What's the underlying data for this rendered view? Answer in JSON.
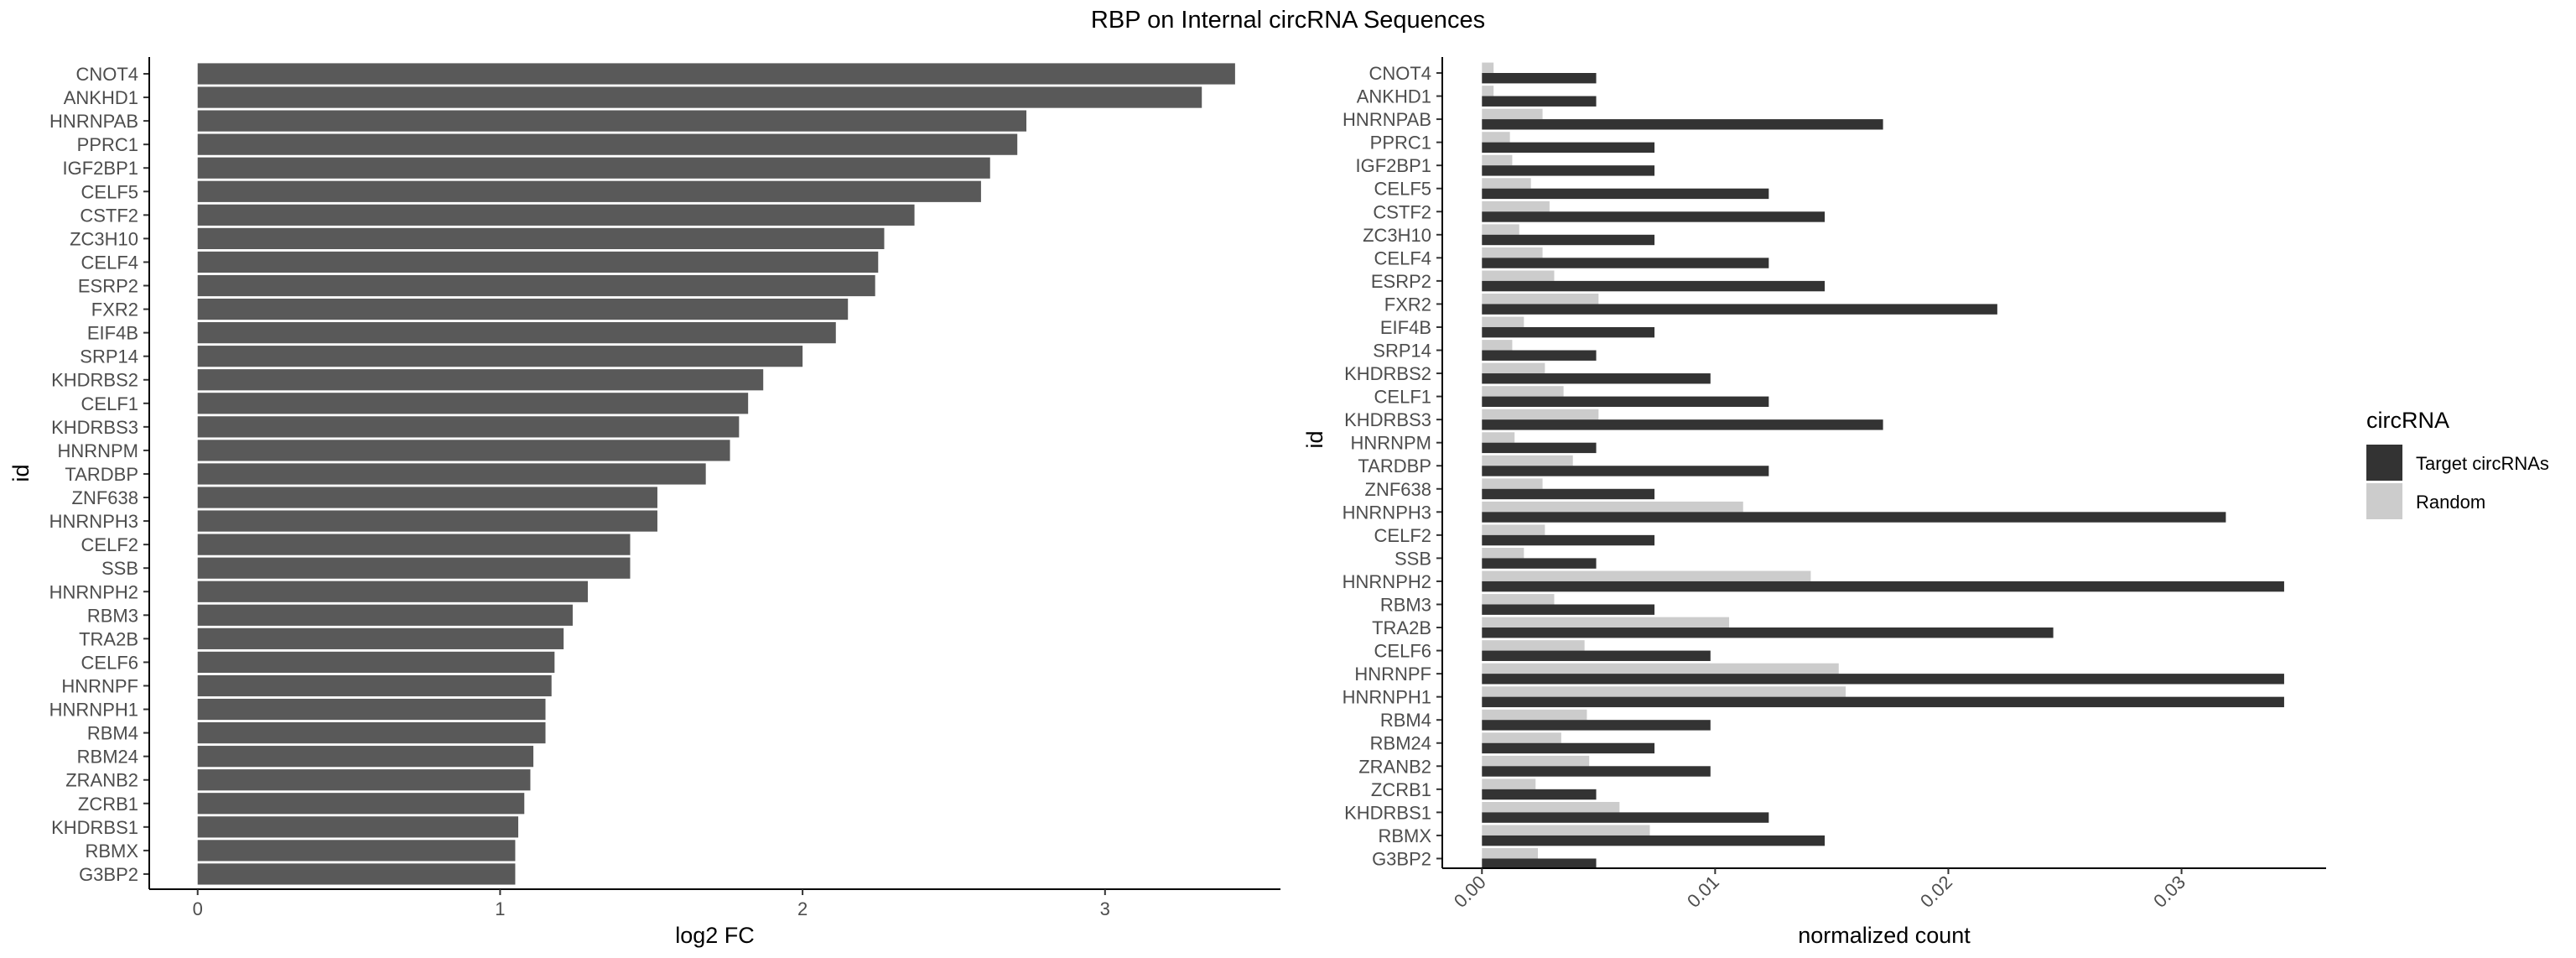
{
  "title": "RBP on Internal circRNA Sequences",
  "colors": {
    "left_bar": "#595959",
    "target": "#333333",
    "random": "#cccccc",
    "axis": "#000000",
    "tick_text": "#4d4d4d"
  },
  "chart_data": [
    {
      "type": "bar",
      "orientation": "horizontal",
      "xlabel": "log2 FC",
      "ylabel": "id",
      "xlim": [
        -0.16,
        3.58
      ],
      "xticks": [
        0,
        1,
        2,
        3
      ],
      "grid": false,
      "categories": [
        "CNOT4",
        "ANKHD1",
        "HNRNPAB",
        "PPRC1",
        "IGF2BP1",
        "CELF5",
        "CSTF2",
        "ZC3H10",
        "CELF4",
        "ESRP2",
        "FXR2",
        "EIF4B",
        "SRP14",
        "KHDRBS2",
        "CELF1",
        "KHDRBS3",
        "HNRNPM",
        "TARDBP",
        "ZNF638",
        "HNRNPH3",
        "CELF2",
        "SSB",
        "HNRNPH2",
        "RBM3",
        "TRA2B",
        "CELF6",
        "HNRNPF",
        "HNRNPH1",
        "RBM4",
        "RBM24",
        "ZRANB2",
        "ZCRB1",
        "KHDRBS1",
        "RBMX",
        "G3BP2"
      ],
      "values": [
        3.43,
        3.32,
        2.74,
        2.71,
        2.62,
        2.59,
        2.37,
        2.27,
        2.25,
        2.24,
        2.15,
        2.11,
        2.0,
        1.87,
        1.82,
        1.79,
        1.76,
        1.68,
        1.52,
        1.52,
        1.43,
        1.43,
        1.29,
        1.24,
        1.21,
        1.18,
        1.17,
        1.15,
        1.15,
        1.11,
        1.1,
        1.08,
        1.06,
        1.05,
        1.05
      ]
    },
    {
      "type": "bar",
      "orientation": "horizontal",
      "xlabel": "normalized count",
      "ylabel": "id",
      "xlim": [
        -0.0017,
        0.0362
      ],
      "xticks": [
        "0.00",
        "0.01",
        "0.02",
        "0.03"
      ],
      "grid": false,
      "legend": {
        "title": "circRNA",
        "position": "right"
      },
      "categories": [
        "CNOT4",
        "ANKHD1",
        "HNRNPAB",
        "PPRC1",
        "IGF2BP1",
        "CELF5",
        "CSTF2",
        "ZC3H10",
        "CELF4",
        "ESRP2",
        "FXR2",
        "EIF4B",
        "SRP14",
        "KHDRBS2",
        "CELF1",
        "KHDRBS3",
        "HNRNPM",
        "TARDBP",
        "ZNF638",
        "HNRNPH3",
        "CELF2",
        "SSB",
        "HNRNPH2",
        "RBM3",
        "TRA2B",
        "CELF6",
        "HNRNPF",
        "HNRNPH1",
        "RBM4",
        "RBM24",
        "ZRANB2",
        "ZCRB1",
        "KHDRBS1",
        "RBMX",
        "G3BP2"
      ],
      "series": [
        {
          "name": "Target circRNAs",
          "values": [
            0.0049,
            0.0049,
            0.0172,
            0.0074,
            0.0074,
            0.0123,
            0.0147,
            0.0074,
            0.0123,
            0.0147,
            0.0221,
            0.0074,
            0.0049,
            0.0098,
            0.0123,
            0.0172,
            0.0049,
            0.0123,
            0.0074,
            0.0319,
            0.0074,
            0.0049,
            0.0344,
            0.0074,
            0.0245,
            0.0098,
            0.0344,
            0.0344,
            0.0098,
            0.0074,
            0.0098,
            0.0049,
            0.0123,
            0.0147,
            0.0049
          ]
        },
        {
          "name": "Random",
          "values": [
            0.0005,
            0.0005,
            0.0026,
            0.0012,
            0.0013,
            0.0021,
            0.0029,
            0.0016,
            0.0026,
            0.0031,
            0.005,
            0.0018,
            0.0013,
            0.0027,
            0.0035,
            0.005,
            0.0014,
            0.0039,
            0.0026,
            0.0112,
            0.0027,
            0.0018,
            0.0141,
            0.0031,
            0.0106,
            0.0044,
            0.0153,
            0.0156,
            0.0045,
            0.0034,
            0.0046,
            0.0023,
            0.0059,
            0.0072,
            0.0024
          ]
        }
      ]
    }
  ]
}
